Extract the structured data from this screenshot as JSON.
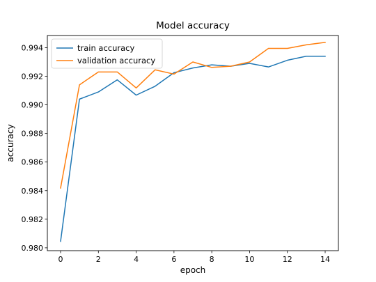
{
  "chart_data": {
    "type": "line",
    "title": "Model accuracy",
    "xlabel": "epoch",
    "ylabel": "accuracy",
    "x": [
      0,
      1,
      2,
      3,
      4,
      5,
      6,
      7,
      8,
      9,
      10,
      11,
      12,
      13,
      14
    ],
    "xlim": [
      -0.7,
      14.7
    ],
    "ylim": [
      0.9798,
      0.99485
    ],
    "xticks": [
      0,
      2,
      4,
      6,
      8,
      10,
      12,
      14
    ],
    "yticks": [
      0.98,
      0.982,
      0.984,
      0.986,
      0.988,
      0.99,
      0.992,
      0.994
    ],
    "xtick_labels": [
      "0",
      "2",
      "4",
      "6",
      "8",
      "10",
      "12",
      "14"
    ],
    "ytick_labels": [
      "0.980",
      "0.982",
      "0.984",
      "0.986",
      "0.988",
      "0.990",
      "0.992",
      "0.994"
    ],
    "grid": false,
    "legend_position": "top-left",
    "series": [
      {
        "name": "train accuracy",
        "color": "#1f77b4",
        "values": [
          0.98045,
          0.9904,
          0.9909,
          0.99175,
          0.99068,
          0.9913,
          0.99225,
          0.99258,
          0.9928,
          0.9927,
          0.9929,
          0.99265,
          0.99312,
          0.9934,
          0.9934
        ]
      },
      {
        "name": "validation accuracy",
        "color": "#ff7f0e",
        "values": [
          0.98418,
          0.9914,
          0.9923,
          0.9923,
          0.99118,
          0.99245,
          0.99215,
          0.993,
          0.99262,
          0.9927,
          0.993,
          0.99395,
          0.99395,
          0.9942,
          0.99437
        ]
      }
    ]
  }
}
